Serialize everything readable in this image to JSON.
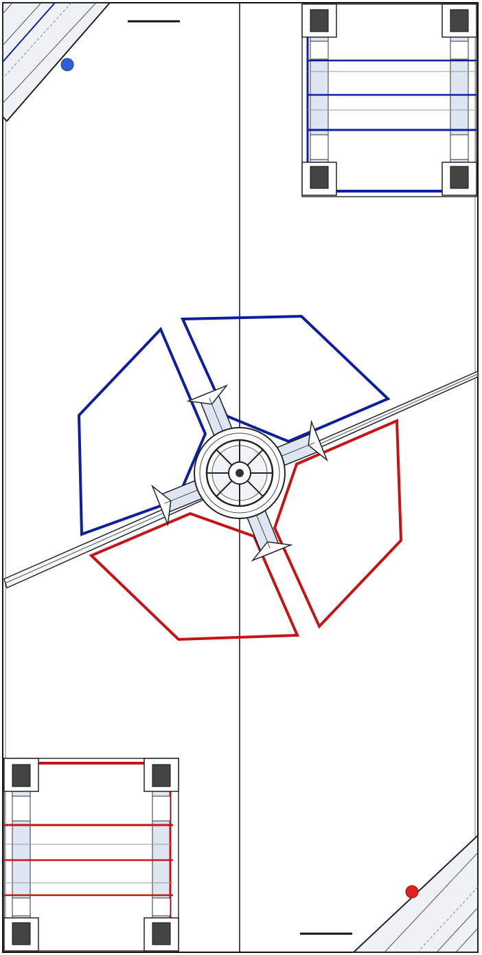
{
  "diagram": {
    "kind": "field-layout",
    "colors": {
      "blue": "#0d1f9e",
      "red": "#c41414",
      "line": "#111111",
      "grey": "#555555",
      "panel": "#dde6f2",
      "blue_marker": "#2f5fd0",
      "red_marker": "#e02020"
    },
    "zones": [
      {
        "name": "blue-zone-upper",
        "alliance": "blue"
      },
      {
        "name": "blue-zone-left",
        "alliance": "blue"
      },
      {
        "name": "red-zone-right",
        "alliance": "red"
      },
      {
        "name": "red-zone-lower",
        "alliance": "red"
      }
    ],
    "structures": [
      {
        "name": "blue-scaffold",
        "alliance": "blue",
        "crossbars": 5
      },
      {
        "name": "red-scaffold",
        "alliance": "red",
        "crossbars": 5
      }
    ],
    "hub_arms": 4
  }
}
